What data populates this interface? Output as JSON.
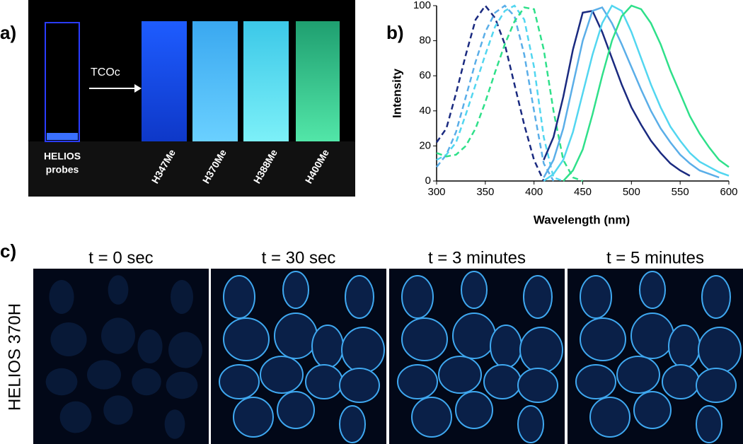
{
  "panel_a": {
    "label": "a)",
    "reagent": "TCOc",
    "probe_lines": [
      "HELIOS",
      "probes"
    ],
    "cuvettes": [
      "H347Me",
      "H370Me",
      "H388Me",
      "H400Me"
    ]
  },
  "chart_data": {
    "type": "line",
    "label": "b)",
    "x_label": "Wavelength (nm)",
    "y_label": "Intensity",
    "x": [
      300,
      310,
      320,
      330,
      340,
      350,
      360,
      370,
      380,
      390,
      400,
      410,
      420,
      430,
      440,
      450,
      460,
      470,
      480,
      490,
      500,
      510,
      520,
      530,
      540,
      550,
      560,
      570,
      580,
      590,
      600
    ],
    "xlim": [
      300,
      600
    ],
    "xticks": [
      300,
      350,
      400,
      450,
      500,
      550,
      600
    ],
    "ylim": [
      0,
      100
    ],
    "yticks": [
      0,
      20,
      40,
      60,
      80,
      100
    ],
    "series": [
      {
        "color": "#1a2a80",
        "dashed": true,
        "values": [
          22,
          30,
          50,
          72,
          92,
          100,
          93,
          78,
          55,
          32,
          12,
          0,
          null,
          null,
          null,
          null,
          null,
          null,
          null,
          null,
          null,
          null,
          null,
          null,
          null,
          null,
          null,
          null,
          null,
          null,
          null
        ]
      },
      {
        "color": "#5aaee8",
        "dashed": true,
        "values": [
          8,
          15,
          28,
          48,
          68,
          85,
          96,
          100,
          94,
          72,
          40,
          10,
          0,
          null,
          null,
          null,
          null,
          null,
          null,
          null,
          null,
          null,
          null,
          null,
          null,
          null,
          null,
          null,
          null,
          null,
          null
        ]
      },
      {
        "color": "#52d6f0",
        "dashed": true,
        "values": [
          12,
          15,
          22,
          38,
          55,
          72,
          88,
          97,
          100,
          92,
          65,
          25,
          2,
          0,
          null,
          null,
          null,
          null,
          null,
          null,
          null,
          null,
          null,
          null,
          null,
          null,
          null,
          null,
          null,
          null,
          null
        ]
      },
      {
        "color": "#2fe08a",
        "dashed": true,
        "values": [
          16,
          14,
          15,
          20,
          30,
          45,
          62,
          78,
          91,
          99,
          98,
          75,
          40,
          12,
          2,
          0,
          null,
          null,
          null,
          null,
          null,
          null,
          null,
          null,
          null,
          null,
          null,
          null,
          null,
          null,
          null
        ]
      },
      {
        "color": "#1a2a80",
        "dashed": false,
        "values": [
          null,
          null,
          null,
          null,
          null,
          null,
          null,
          null,
          null,
          null,
          null,
          12,
          25,
          48,
          75,
          96,
          97,
          85,
          70,
          55,
          42,
          32,
          23,
          16,
          10,
          6,
          3,
          null,
          null,
          null,
          null
        ]
      },
      {
        "color": "#5aaee8",
        "dashed": false,
        "values": [
          null,
          null,
          null,
          null,
          null,
          null,
          null,
          null,
          null,
          null,
          null,
          2,
          12,
          30,
          55,
          80,
          97,
          99,
          90,
          78,
          65,
          52,
          40,
          30,
          22,
          15,
          10,
          6,
          4,
          2,
          null
        ]
      },
      {
        "color": "#52d6f0",
        "dashed": false,
        "values": [
          null,
          null,
          null,
          null,
          null,
          null,
          null,
          null,
          null,
          null,
          null,
          0,
          4,
          12,
          28,
          50,
          72,
          90,
          100,
          97,
          85,
          70,
          55,
          42,
          31,
          23,
          16,
          11,
          8,
          5,
          3
        ]
      },
      {
        "color": "#2fe08a",
        "dashed": false,
        "values": [
          null,
          null,
          null,
          null,
          null,
          null,
          null,
          null,
          null,
          null,
          null,
          null,
          null,
          0,
          6,
          18,
          38,
          60,
          80,
          94,
          100,
          98,
          90,
          78,
          63,
          50,
          37,
          27,
          19,
          12,
          8
        ]
      }
    ]
  },
  "panel_c": {
    "label": "c)",
    "row_label": "HELIOS 370H",
    "times": [
      "t = 0 sec",
      "t = 30 sec",
      "t = 3 minutes",
      "t = 5 minutes"
    ]
  }
}
